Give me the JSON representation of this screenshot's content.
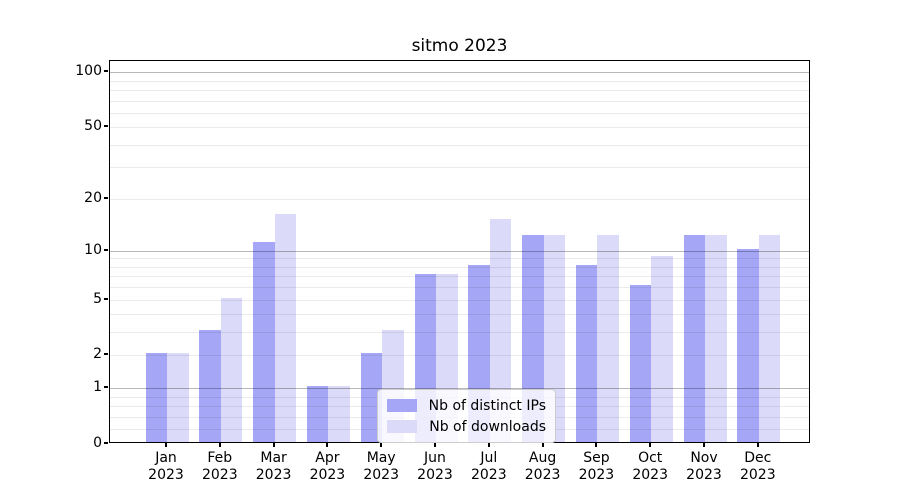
{
  "chart_data": {
    "type": "bar",
    "title": "sitmo 2023",
    "categories": [
      "Jan 2023",
      "Feb 2023",
      "Mar 2023",
      "Apr 2023",
      "May 2023",
      "Jun 2023",
      "Jul 2023",
      "Aug 2023",
      "Sep 2023",
      "Oct 2023",
      "Nov 2023",
      "Dec 2023"
    ],
    "category_line1": [
      "Jan",
      "Feb",
      "Mar",
      "Apr",
      "May",
      "Jun",
      "Jul",
      "Aug",
      "Sep",
      "Oct",
      "Nov",
      "Dec"
    ],
    "category_line2": [
      "2023",
      "2023",
      "2023",
      "2023",
      "2023",
      "2023",
      "2023",
      "2023",
      "2023",
      "2023",
      "2023",
      "2023"
    ],
    "series": [
      {
        "name": "Nb of distinct IPs",
        "color": "#a6a6f6",
        "values": [
          2,
          3,
          11,
          1,
          2,
          7,
          8,
          12,
          8,
          6,
          12,
          10
        ]
      },
      {
        "name": "Nb of downloads",
        "color": "#dbdbf9",
        "values": [
          2,
          5,
          16,
          1,
          3,
          7,
          15,
          12,
          12,
          9,
          12,
          12
        ]
      }
    ],
    "yscale": "log1p",
    "yticks": [
      0,
      1,
      2,
      5,
      10,
      20,
      50,
      100
    ],
    "minor_gridline_values": [
      0.2,
      0.4,
      0.6,
      0.8,
      2,
      3,
      4,
      5,
      6,
      7,
      8,
      9,
      20,
      30,
      40,
      50,
      60,
      70,
      80,
      90
    ],
    "major_gridline_values": [
      1,
      10,
      100
    ],
    "ylim": [
      0,
      115
    ],
    "xlabel": "",
    "ylabel": "",
    "grid": true,
    "legend_position": "lower center inside",
    "colors": {
      "axis": "#000000",
      "major_grid": "#b5b5b5",
      "minor_grid": "#ebebeb",
      "background": "#ffffff"
    }
  }
}
